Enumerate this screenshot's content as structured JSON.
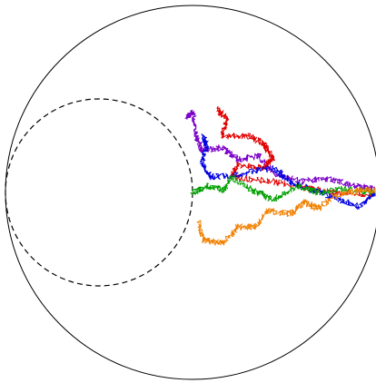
{
  "diagram": {
    "description_free": true,
    "colors": {
      "background": "#ffffff",
      "outer_circle": "#000000",
      "inner_circle": "#000000",
      "paths": [
        "#7b00c8",
        "#e00000",
        "#0000e0",
        "#00a000",
        "#f08000"
      ]
    },
    "paths": [
      {
        "color_index": 0
      },
      {
        "color_index": 1
      },
      {
        "color_index": 2
      },
      {
        "color_index": 3
      },
      {
        "color_index": 4
      }
    ]
  }
}
